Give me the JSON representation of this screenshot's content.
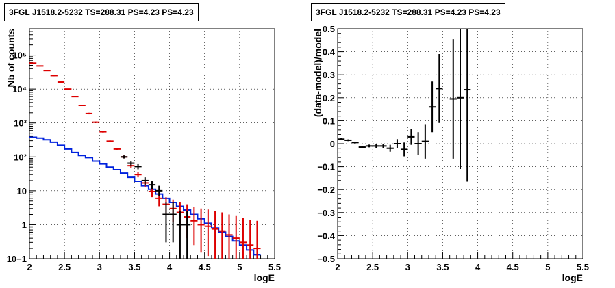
{
  "chart_data": [
    {
      "type": "line",
      "title": "3FGL J1518.2-5232 TS=288.31 PS=4.23 PS=4.23",
      "xlabel": "logE",
      "ylabel": "Nb of counts",
      "xlim": [
        2,
        5.5
      ],
      "ylim": [
        0.1,
        600000
      ],
      "yscale": "log",
      "grid": true,
      "x_ticks": [
        "2",
        "2.5",
        "3",
        "3.5",
        "4",
        "4.5",
        "5",
        "5.5"
      ],
      "y_ticks": [
        "10−1",
        "1",
        "10",
        "10²",
        "10³",
        "10⁴",
        "10⁵"
      ],
      "colors": {
        "model_total": "#dd0000",
        "model_source": "#0022dd",
        "data": "#000000"
      },
      "series": [
        {
          "style": "red-step-with-errors",
          "x": [
            2.05,
            2.15,
            2.25,
            2.35,
            2.45,
            2.55,
            2.65,
            2.75,
            2.85,
            2.95,
            3.05,
            3.15,
            3.25,
            3.35,
            3.45,
            3.55,
            3.65,
            3.75,
            3.85,
            3.95,
            4.05,
            4.15,
            4.25,
            4.35,
            4.45,
            4.55,
            4.65,
            4.75,
            4.85,
            4.95,
            5.05,
            5.15,
            5.25
          ],
          "values": [
            58000,
            48000,
            35000,
            25000,
            16000,
            10000,
            6000,
            3300,
            1900,
            1050,
            550,
            290,
            170,
            100,
            55,
            30,
            17,
            9.5,
            6,
            4,
            3,
            2.3,
            1.7,
            1.3,
            1,
            0.9,
            0.75,
            0.65,
            0.5,
            0.4,
            0.3,
            0.25,
            0.2
          ],
          "lo": [
            56000,
            46500,
            34000,
            24000,
            15500,
            9700,
            5800,
            3200,
            1800,
            1000,
            520,
            275,
            155,
            90,
            48,
            25,
            13,
            6.5,
            3.5,
            2,
            1.2,
            0.7,
            0.4,
            0.25,
            0.15,
            0.12,
            0.1,
            0.1,
            0.1,
            0.1,
            0.1,
            0.1,
            0.1
          ],
          "hi": [
            60000,
            49500,
            36000,
            26000,
            16500,
            10300,
            6200,
            3400,
            2000,
            1100,
            580,
            305,
            185,
            110,
            62,
            35,
            21,
            13,
            9,
            6.5,
            5.5,
            4.5,
            4,
            3.4,
            3,
            2.8,
            2.5,
            2.3,
            2,
            1.8,
            1.6,
            1.4,
            1.3
          ]
        },
        {
          "style": "blue-step",
          "x": [
            2.05,
            2.15,
            2.25,
            2.35,
            2.45,
            2.55,
            2.65,
            2.75,
            2.85,
            2.95,
            3.05,
            3.15,
            3.25,
            3.35,
            3.45,
            3.55,
            3.65,
            3.75,
            3.85,
            3.95,
            4.05,
            4.15,
            4.25,
            4.35,
            4.45,
            4.55,
            4.65,
            4.75,
            4.85,
            4.95,
            5.05,
            5.15,
            5.25
          ],
          "values": [
            380,
            360,
            320,
            270,
            220,
            170,
            135,
            110,
            95,
            75,
            62,
            50,
            42,
            33,
            25,
            19,
            14,
            11,
            8,
            6,
            4.5,
            3.5,
            2.7,
            2,
            1.5,
            1.1,
            0.8,
            0.6,
            0.45,
            0.33,
            0.25,
            0.18,
            0.13
          ]
        },
        {
          "style": "black-data-points",
          "x": [
            3.35,
            3.45,
            3.55,
            3.65,
            3.75,
            3.85,
            3.95,
            4.05,
            4.15,
            4.25
          ],
          "values": [
            100,
            65,
            52,
            20,
            15,
            10,
            2,
            2,
            1,
            1
          ],
          "lo": [
            90,
            55,
            43,
            15,
            11,
            7,
            0.3,
            0.3,
            0.1,
            0.1
          ],
          "hi": [
            110,
            75,
            61,
            25,
            19,
            14,
            4.5,
            4.5,
            2.5,
            2.5
          ]
        }
      ]
    },
    {
      "type": "scatter",
      "title": "3FGL J1518.2-5232 TS=288.31 PS=4.23 PS=4.23",
      "xlabel": "logE",
      "ylabel": "(data-model)/model",
      "xlim": [
        2,
        5.5
      ],
      "ylim": [
        -0.5,
        0.5
      ],
      "grid": true,
      "x_ticks": [
        "2",
        "2.5",
        "3",
        "3.5",
        "4",
        "4.5",
        "5",
        "5.5"
      ],
      "y_ticks": [
        "−0.5",
        "−0.4",
        "−0.3",
        "−0.2",
        "−0.1",
        "0",
        "0.1",
        "0.2",
        "0.3",
        "0.4",
        "0.5"
      ],
      "series": [
        {
          "x": [
            2.05,
            2.15,
            2.25,
            2.35,
            2.45,
            2.55,
            2.65,
            2.75,
            2.85,
            2.95,
            3.05,
            3.15,
            3.25,
            3.35,
            3.45,
            3.65,
            3.75,
            3.85
          ],
          "values": [
            0.02,
            0.015,
            0.005,
            -0.015,
            -0.01,
            -0.01,
            -0.01,
            -0.02,
            0.0,
            -0.025,
            0.03,
            0.0,
            0.01,
            0.16,
            0.24,
            0.195,
            0.2,
            0.235
          ],
          "err": [
            0.004,
            0.004,
            0.004,
            0.005,
            0.006,
            0.008,
            0.01,
            0.015,
            0.02,
            0.03,
            0.035,
            0.05,
            0.075,
            0.11,
            0.15,
            0.26,
            0.31,
            0.4
          ]
        }
      ]
    }
  ]
}
